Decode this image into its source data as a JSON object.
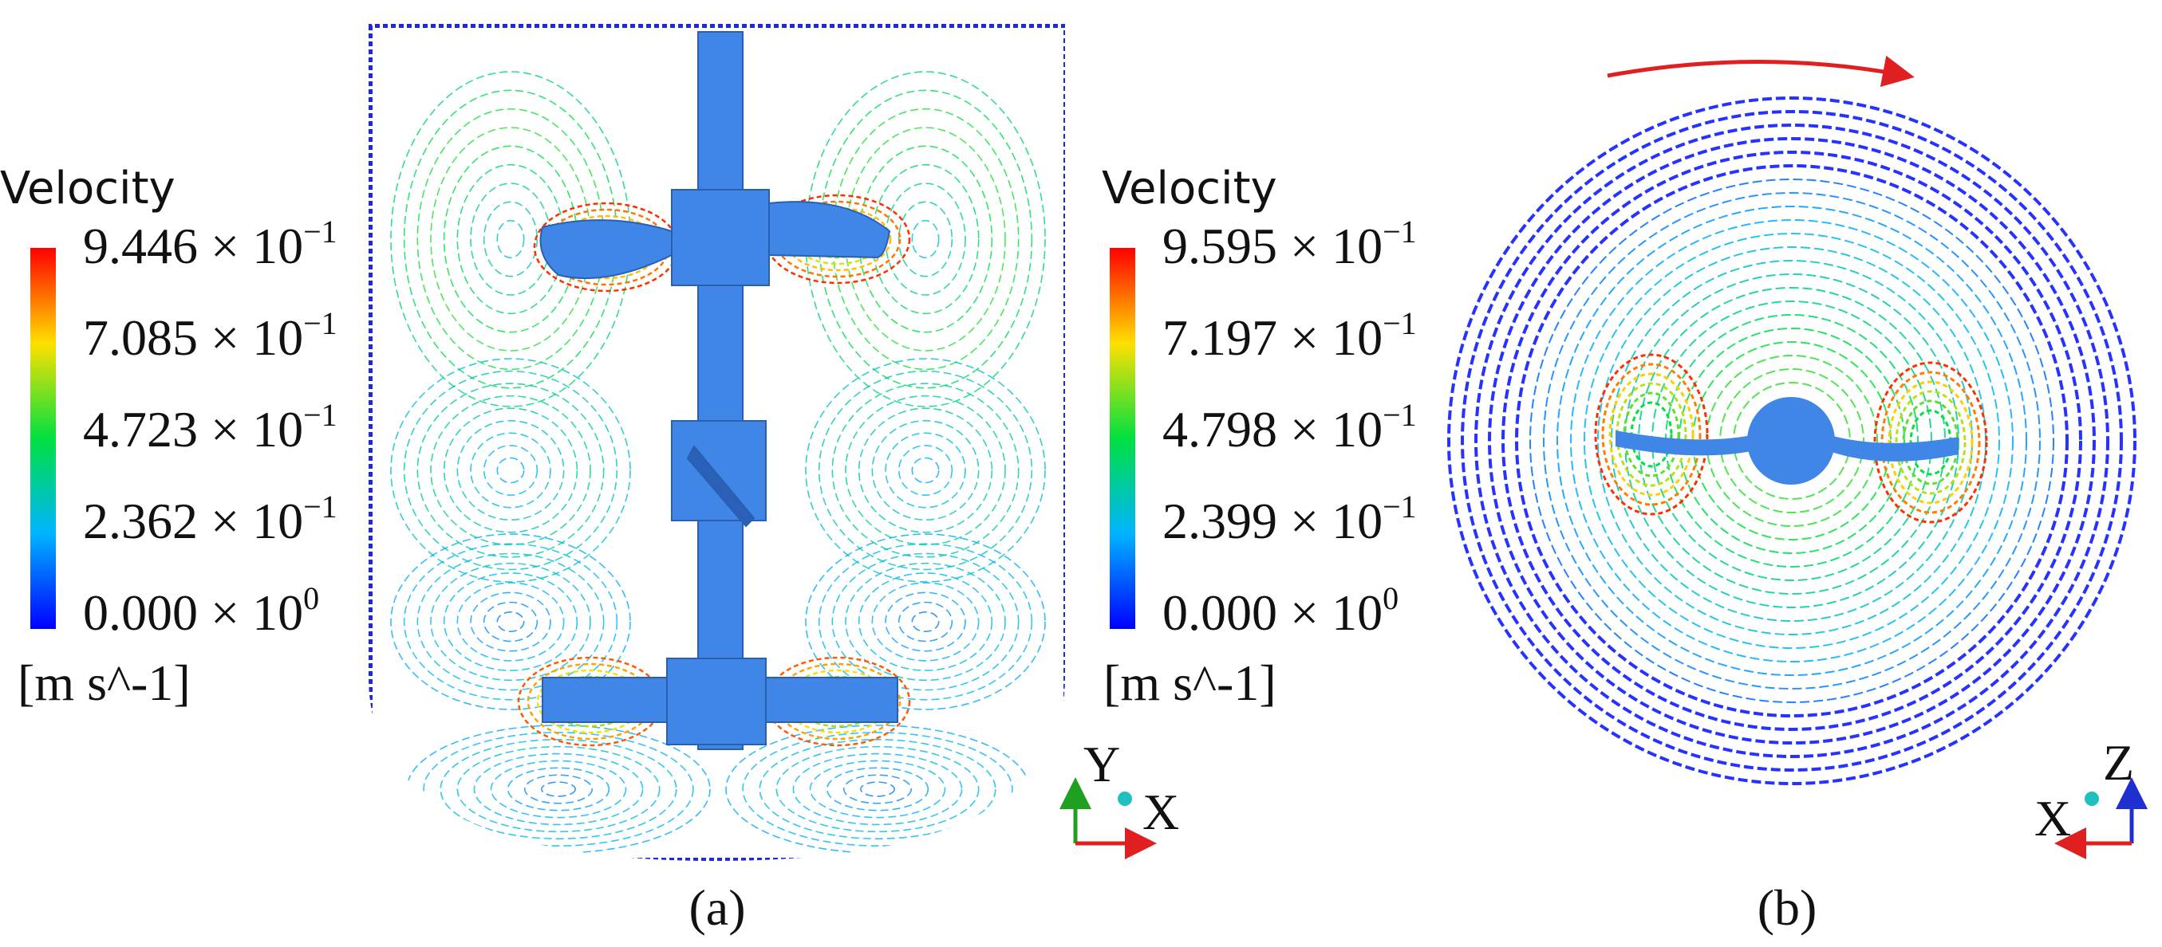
{
  "panels": [
    {
      "legend": {
        "title": "Velocity",
        "ticks": [
          {
            "text": "9.446 × 10",
            "exponent": "−1"
          },
          {
            "text": "7.085 × 10",
            "exponent": "−1"
          },
          {
            "text": "4.723 × 10",
            "exponent": "−1"
          },
          {
            "text": "2.362 × 10",
            "exponent": "−1"
          },
          {
            "text": "0.000 × 10",
            "exponent": "0"
          }
        ],
        "unit": "[m s^-1]"
      },
      "axes": {
        "vertical": "Y",
        "horizontal": "X"
      },
      "caption": "(a)"
    },
    {
      "legend": {
        "title": "Velocity",
        "ticks": [
          {
            "text": "9.595 × 10",
            "exponent": "−1"
          },
          {
            "text": "7.197 × 10",
            "exponent": "−1"
          },
          {
            "text": "4.798 × 10",
            "exponent": "−1"
          },
          {
            "text": "2.399 × 10",
            "exponent": "−1"
          },
          {
            "text": "0.000 × 10",
            "exponent": "0"
          }
        ],
        "unit": "[m s^-1]"
      },
      "axes": {
        "vertical": "Z",
        "horizontal": "X"
      },
      "caption": "(b)"
    }
  ]
}
